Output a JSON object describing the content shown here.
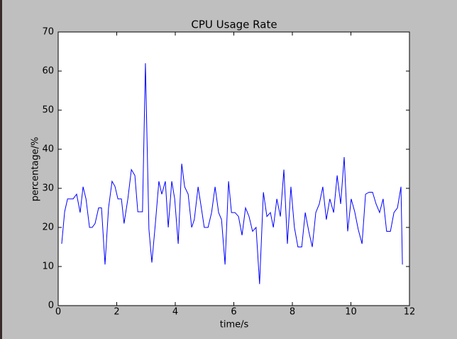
{
  "chart_data": {
    "type": "line",
    "title": "CPU Usage Rate",
    "xlabel": "time/s",
    "ylabel": "percentage/%",
    "x": [
      0.12,
      0.22,
      0.32,
      0.41,
      0.51,
      0.63,
      0.75,
      0.85,
      0.95,
      1.07,
      1.16,
      1.26,
      1.38,
      1.48,
      1.6,
      1.72,
      1.84,
      1.94,
      2.04,
      2.16,
      2.25,
      2.38,
      2.5,
      2.62,
      2.72,
      2.88,
      2.98,
      3.1,
      3.2,
      3.32,
      3.44,
      3.54,
      3.66,
      3.76,
      3.88,
      3.98,
      4.1,
      4.22,
      4.32,
      4.44,
      4.56,
      4.65,
      4.78,
      4.87,
      4.99,
      5.12,
      5.24,
      5.36,
      5.48,
      5.58,
      5.7,
      5.82,
      5.92,
      6.04,
      6.16,
      6.28,
      6.4,
      6.52,
      6.64,
      6.76,
      6.88,
      7.01,
      7.13,
      7.25,
      7.35,
      7.47,
      7.59,
      7.71,
      7.83,
      7.95,
      8.07,
      8.19,
      8.32,
      8.44,
      8.56,
      8.68,
      8.8,
      8.92,
      9.04,
      9.16,
      9.28,
      9.41,
      9.53,
      9.65,
      9.77,
      9.89,
      10.01,
      10.13,
      10.25,
      10.38,
      10.5,
      10.62,
      10.74,
      10.86,
      10.98,
      11.1,
      11.22,
      11.35,
      11.47,
      11.59,
      11.71,
      11.76
    ],
    "values": [
      15.8,
      24,
      27.3,
      27.3,
      27.3,
      28.5,
      23.8,
      30.4,
      27.3,
      20,
      20,
      21,
      25,
      25,
      10.5,
      25,
      31.8,
      30.5,
      27.3,
      27.3,
      21,
      27.3,
      34.8,
      33.3,
      24,
      24,
      62,
      19.5,
      11,
      21,
      31.8,
      28.5,
      31.8,
      20,
      31.8,
      27.3,
      15.8,
      36.3,
      30.4,
      28.5,
      20,
      22,
      30.4,
      26,
      20,
      20,
      23.8,
      30.4,
      23.8,
      22,
      10.5,
      31.8,
      23.8,
      23.8,
      22.8,
      18,
      25,
      22.8,
      19,
      20,
      5.5,
      29,
      22.8,
      23.8,
      20,
      27.3,
      22.8,
      34.8,
      15.8,
      30.4,
      20,
      15,
      15,
      23.8,
      19,
      15,
      23.8,
      26,
      30.4,
      22,
      27.3,
      23.8,
      33.3,
      26,
      38,
      19,
      27.3,
      24,
      19.5,
      15.8,
      28.5,
      29,
      29,
      26,
      23.8,
      27.3,
      19,
      19,
      23.8,
      25,
      30.4,
      10.5
    ],
    "color": "#0000ff",
    "xlim": [
      0,
      12
    ],
    "ylim": [
      0,
      70
    ],
    "xticks": [
      0,
      2,
      4,
      6,
      8,
      10,
      12
    ],
    "yticks": [
      0,
      10,
      20,
      30,
      40,
      50,
      60,
      70
    ]
  }
}
